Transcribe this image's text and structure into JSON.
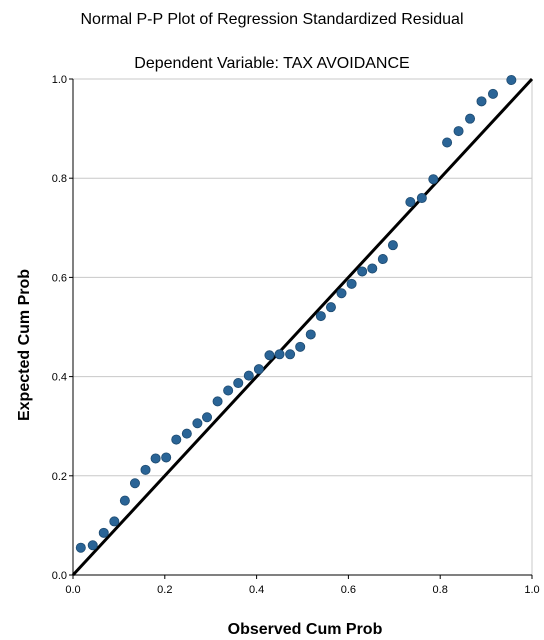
{
  "chart_data": {
    "type": "scatter",
    "title": "Normal P-P Plot of Regression Standardized Residual",
    "subtitle": "Dependent Variable: TAX AVOIDANCE",
    "xlabel": "Observed Cum Prob",
    "ylabel": "Expected Cum Prob",
    "xlim": [
      0,
      1
    ],
    "ylim": [
      0,
      1
    ],
    "xticks": [
      "0.0",
      "0.2",
      "0.4",
      "0.6",
      "0.8",
      "1.0"
    ],
    "yticks": [
      "0.0",
      "0.2",
      "0.4",
      "0.6",
      "0.8",
      "1.0"
    ],
    "grid": "horizontal",
    "reference_line": {
      "from": [
        0,
        0
      ],
      "to": [
        1,
        1
      ],
      "color": "#000000"
    },
    "point_color": "#2a6496",
    "points": [
      [
        0.017,
        0.055
      ],
      [
        0.043,
        0.06
      ],
      [
        0.067,
        0.085
      ],
      [
        0.09,
        0.108
      ],
      [
        0.113,
        0.15
      ],
      [
        0.135,
        0.185
      ],
      [
        0.158,
        0.212
      ],
      [
        0.18,
        0.235
      ],
      [
        0.203,
        0.237
      ],
      [
        0.225,
        0.273
      ],
      [
        0.248,
        0.285
      ],
      [
        0.271,
        0.306
      ],
      [
        0.292,
        0.318
      ],
      [
        0.315,
        0.35
      ],
      [
        0.338,
        0.372
      ],
      [
        0.36,
        0.387
      ],
      [
        0.383,
        0.402
      ],
      [
        0.405,
        0.415
      ],
      [
        0.428,
        0.443
      ],
      [
        0.45,
        0.445
      ],
      [
        0.473,
        0.445
      ],
      [
        0.495,
        0.46
      ],
      [
        0.518,
        0.485
      ],
      [
        0.54,
        0.522
      ],
      [
        0.562,
        0.54
      ],
      [
        0.585,
        0.568
      ],
      [
        0.607,
        0.587
      ],
      [
        0.63,
        0.612
      ],
      [
        0.652,
        0.618
      ],
      [
        0.675,
        0.637
      ],
      [
        0.697,
        0.665
      ],
      [
        0.735,
        0.752
      ],
      [
        0.76,
        0.76
      ],
      [
        0.785,
        0.798
      ],
      [
        0.815,
        0.872
      ],
      [
        0.84,
        0.895
      ],
      [
        0.865,
        0.92
      ],
      [
        0.89,
        0.955
      ],
      [
        0.915,
        0.97
      ],
      [
        0.955,
        0.998
      ]
    ]
  }
}
